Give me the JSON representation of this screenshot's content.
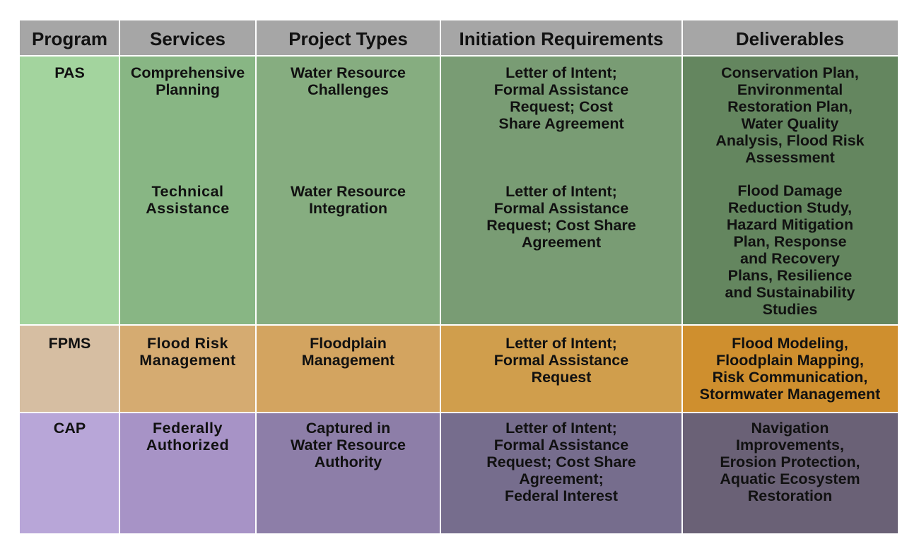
{
  "headers": [
    "Program",
    "Services",
    "Project Types",
    "Initiation Requirements",
    "Deliverables"
  ],
  "rows": {
    "pas": {
      "program": "PAS",
      "services": [
        "Comprehensive\nPlanning",
        "Technical\nAssistance"
      ],
      "project_types": [
        "Water Resource\nChallenges",
        "Water Resource\nIntegration"
      ],
      "initiation": [
        "Letter of Intent;\nFormal Assistance\nRequest; Cost\nShare Agreement",
        "Letter of Intent;\nFormal Assistance\nRequest; Cost Share\nAgreement"
      ],
      "deliverables": [
        "Conservation Plan,\nEnvironmental\nRestoration Plan,\nWater Quality\nAnalysis, Flood Risk\nAssessment",
        "Flood Damage\nReduction Study,\nHazard Mitigation\nPlan, Response\nand Recovery\nPlans, Resilience\nand Sustainability\nStudies"
      ]
    },
    "fpms": {
      "program": "FPMS",
      "services": "Flood Risk\nManagement",
      "project_types": "Floodplain\nManagement",
      "initiation": "Letter of Intent;\nFormal Assistance\nRequest",
      "deliverables": "Flood Modeling,\nFloodplain Mapping,\nRisk Communication,\nStormwater Management"
    },
    "cap": {
      "program": "CAP",
      "services": "Federally\nAuthorized",
      "project_types": "Captured in\nWater Resource\nAuthority",
      "initiation": "Letter of Intent;\nFormal Assistance\nRequest; Cost Share\nAgreement;\nFederal Interest",
      "deliverables": "Navigation\nImprovements,\nErosion Protection,\nAquatic Ecosystem\nRestoration"
    }
  },
  "colors": {
    "header": "#a6a6a6",
    "pas": [
      "#a3d49e",
      "#88b684",
      "#86ad80",
      "#799c74",
      "#64865f"
    ],
    "fpms": [
      "#d6bea2",
      "#d5ab71",
      "#d3a460",
      "#d09e4c",
      "#cf8f2e"
    ],
    "cap": [
      "#b8a6d8",
      "#a793c6",
      "#8d7ea8",
      "#766d8d",
      "#6a6176"
    ]
  }
}
